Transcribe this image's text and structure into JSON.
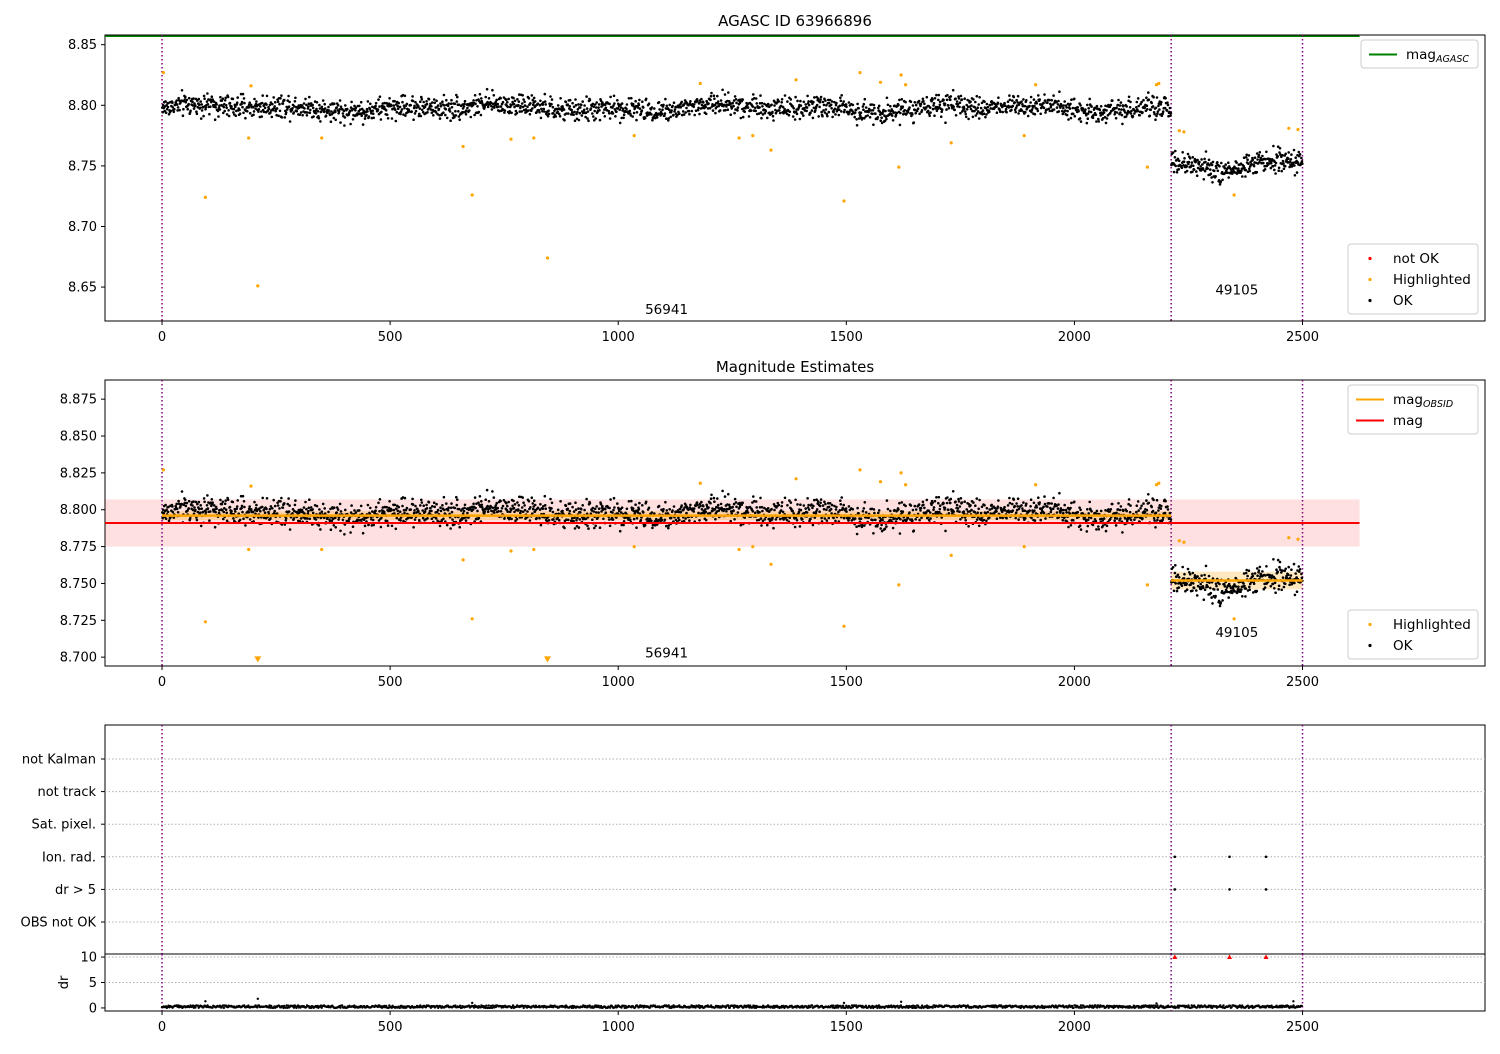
{
  "figure": {
    "colors": {
      "ok": "#000000",
      "highlighted": "#ffa500",
      "not_ok": "#ff0000",
      "agasc": "#008000",
      "obsid_line": "#ffa500",
      "mag_line": "#ff0000",
      "obs_boundary": "#800080",
      "band_mag": "#ff0000",
      "band_obsid": "#ffa500"
    }
  },
  "chart_data": [
    {
      "type": "scatter",
      "title": "AGASC ID 63966896",
      "xlabel": "",
      "ylabel": "",
      "xlim": [
        -125,
        2900
      ],
      "ylim": [
        8.622,
        8.858
      ],
      "xticks": [
        0,
        500,
        1000,
        1500,
        2000,
        2500
      ],
      "yticks": [
        8.65,
        8.7,
        8.75,
        8.8,
        8.85
      ],
      "ytick_labels": [
        "8.65",
        "8.70",
        "8.75",
        "8.80",
        "8.85"
      ],
      "obs_boundaries": [
        0,
        2212,
        2500
      ],
      "obs_labels": [
        {
          "text": "56941",
          "x": 1106,
          "y": 8.632
        },
        {
          "text": "49105",
          "x": 2356,
          "y": 8.648
        }
      ],
      "lines": [
        {
          "name": "mag_AGASC",
          "name_main": "mag",
          "name_sub": "AGASC",
          "y": 8.857,
          "x0": -125,
          "x1": 2625,
          "color": "#008000"
        }
      ],
      "legends": [
        {
          "position": "top-right",
          "entries": [
            {
              "kind": "line",
              "label_main": "mag",
              "label_sub": "AGASC",
              "color": "#008000"
            }
          ]
        },
        {
          "position": "bottom-right",
          "entries": [
            {
              "kind": "dot",
              "label": "not OK",
              "color": "#ff0000"
            },
            {
              "kind": "dot",
              "label": "Highlighted",
              "color": "#ffa500"
            },
            {
              "kind": "dot",
              "label": "OK",
              "color": "#000000"
            }
          ]
        }
      ],
      "series": [
        {
          "name": "OK",
          "generator": {
            "segments": [
              [
                0,
                2212,
                8.798,
                0.0065,
                6
              ],
              [
                2212,
                2500,
                8.753,
                0.0065,
                6
              ]
            ],
            "dips": [
              [
                2350,
                60,
                -0.012
              ],
              [
                2400,
                80,
                0.002
              ]
            ],
            "count": 2400
          }
        },
        {
          "name": "Highlighted",
          "x": [
            3,
            95,
            190,
            195,
            210,
            350,
            660,
            680,
            765,
            815,
            845,
            1035,
            1180,
            1265,
            1295,
            1335,
            1390,
            1495,
            1530,
            1575,
            1615,
            1620,
            1630,
            1730,
            1890,
            1915,
            2160,
            2180,
            2185,
            2230,
            2240,
            2350,
            2470,
            2490
          ],
          "y": [
            8.827,
            8.724,
            8.773,
            8.816,
            8.651,
            8.773,
            8.766,
            8.726,
            8.772,
            8.773,
            8.674,
            8.775,
            8.818,
            8.773,
            8.775,
            8.763,
            8.821,
            8.721,
            8.827,
            8.819,
            8.749,
            8.825,
            8.817,
            8.769,
            8.775,
            8.817,
            8.749,
            8.817,
            8.818,
            8.779,
            8.778,
            8.726,
            8.781,
            8.78
          ]
        },
        {
          "name": "not OK",
          "x": [],
          "y": []
        }
      ]
    },
    {
      "type": "scatter",
      "title": "Magnitude Estimates",
      "xlabel": "",
      "ylabel": "",
      "xlim": [
        -125,
        2900
      ],
      "ylim": [
        8.694,
        8.888
      ],
      "xticks": [
        0,
        500,
        1000,
        1500,
        2000,
        2500
      ],
      "yticks": [
        8.7,
        8.725,
        8.75,
        8.775,
        8.8,
        8.825,
        8.85,
        8.875
      ],
      "ytick_labels": [
        "8.700",
        "8.725",
        "8.750",
        "8.775",
        "8.800",
        "8.825",
        "8.850",
        "8.875"
      ],
      "obs_boundaries": [
        0,
        2212,
        2500
      ],
      "obs_labels": [
        {
          "text": "56941",
          "x": 1106,
          "y": 8.703
        },
        {
          "text": "49105",
          "x": 2356,
          "y": 8.717
        }
      ],
      "bands": [
        {
          "x0": -125,
          "x1": 2625,
          "y0": 8.775,
          "y1": 8.807,
          "color": "#ff0000",
          "opacity": 0.12
        },
        {
          "x0": 0,
          "x1": 2212,
          "y0": 8.793,
          "y1": 8.799,
          "color": "#ffa500",
          "opacity": 0.25
        },
        {
          "x0": 2212,
          "x1": 2500,
          "y0": 8.746,
          "y1": 8.758,
          "color": "#ffa500",
          "opacity": 0.25
        }
      ],
      "lines": [
        {
          "name": "mag_OBSID",
          "y": 8.796,
          "x0": 0,
          "x1": 2212,
          "color": "#ffa500",
          "width": 2.5
        },
        {
          "name": "mag_OBSID",
          "y": 8.752,
          "x0": 2212,
          "x1": 2500,
          "color": "#ffa500",
          "width": 2.5
        },
        {
          "name": "mag",
          "y": 8.791,
          "x0": -125,
          "x1": 2625,
          "color": "#ff0000",
          "width": 2
        }
      ],
      "clipped_markers": {
        "x": [
          210,
          845
        ],
        "y": 8.6985,
        "color": "#ffa500"
      },
      "legends": [
        {
          "position": "top-right",
          "entries": [
            {
              "kind": "line",
              "label_main": "mag",
              "label_sub": "OBSID",
              "color": "#ffa500"
            },
            {
              "kind": "line",
              "label": "mag",
              "color": "#ff0000"
            }
          ]
        },
        {
          "position": "bottom-right",
          "entries": [
            {
              "kind": "dot",
              "label": "Highlighted",
              "color": "#ffa500"
            },
            {
              "kind": "dot",
              "label": "OK",
              "color": "#000000"
            }
          ]
        }
      ],
      "series": [
        {
          "name": "OK",
          "same_as_panel": 0
        },
        {
          "name": "Highlighted",
          "same_as_panel": 0
        }
      ]
    },
    {
      "type": "scatter",
      "title": "",
      "xlabel": "",
      "ylabel": "",
      "xlim": [
        -125,
        2900
      ],
      "categories": [
        "not Kalman",
        "not track",
        "Sat. pixel.",
        "Ion. rad.",
        "dr > 5",
        "OBS not OK"
      ],
      "obs_boundaries": [
        0,
        2212,
        2500
      ],
      "flag_points": [
        {
          "category": "Ion. rad.",
          "x": [
            2220,
            2340,
            2420
          ]
        },
        {
          "category": "dr > 5",
          "x": [
            2220,
            2340,
            2420
          ]
        }
      ],
      "grid": "dotted"
    },
    {
      "type": "scatter",
      "title": "",
      "xlabel": "",
      "ylabel": "dr",
      "xlim": [
        -125,
        2900
      ],
      "ylim": [
        -0.6,
        10.6
      ],
      "xticks": [
        0,
        500,
        1000,
        1500,
        2000,
        2500
      ],
      "yticks": [
        0,
        5,
        10
      ],
      "ytick_labels": [
        "0",
        "5",
        "10"
      ],
      "obs_boundaries": [
        0,
        2212,
        2500
      ],
      "clipped_markers": {
        "x": [
          2220,
          2340,
          2420
        ],
        "y": 10,
        "color": "#ff0000"
      },
      "series": [
        {
          "name": "dr",
          "generator": {
            "baseline": 0.25,
            "spread": 0.25,
            "count": 1400
          }
        },
        {
          "name": "dr_spikes",
          "x": [
            95,
            210,
            680,
            1495,
            1620,
            2180,
            2480
          ],
          "y": [
            1.3,
            1.8,
            1.0,
            1.0,
            1.2,
            0.9,
            1.3
          ]
        }
      ]
    }
  ]
}
